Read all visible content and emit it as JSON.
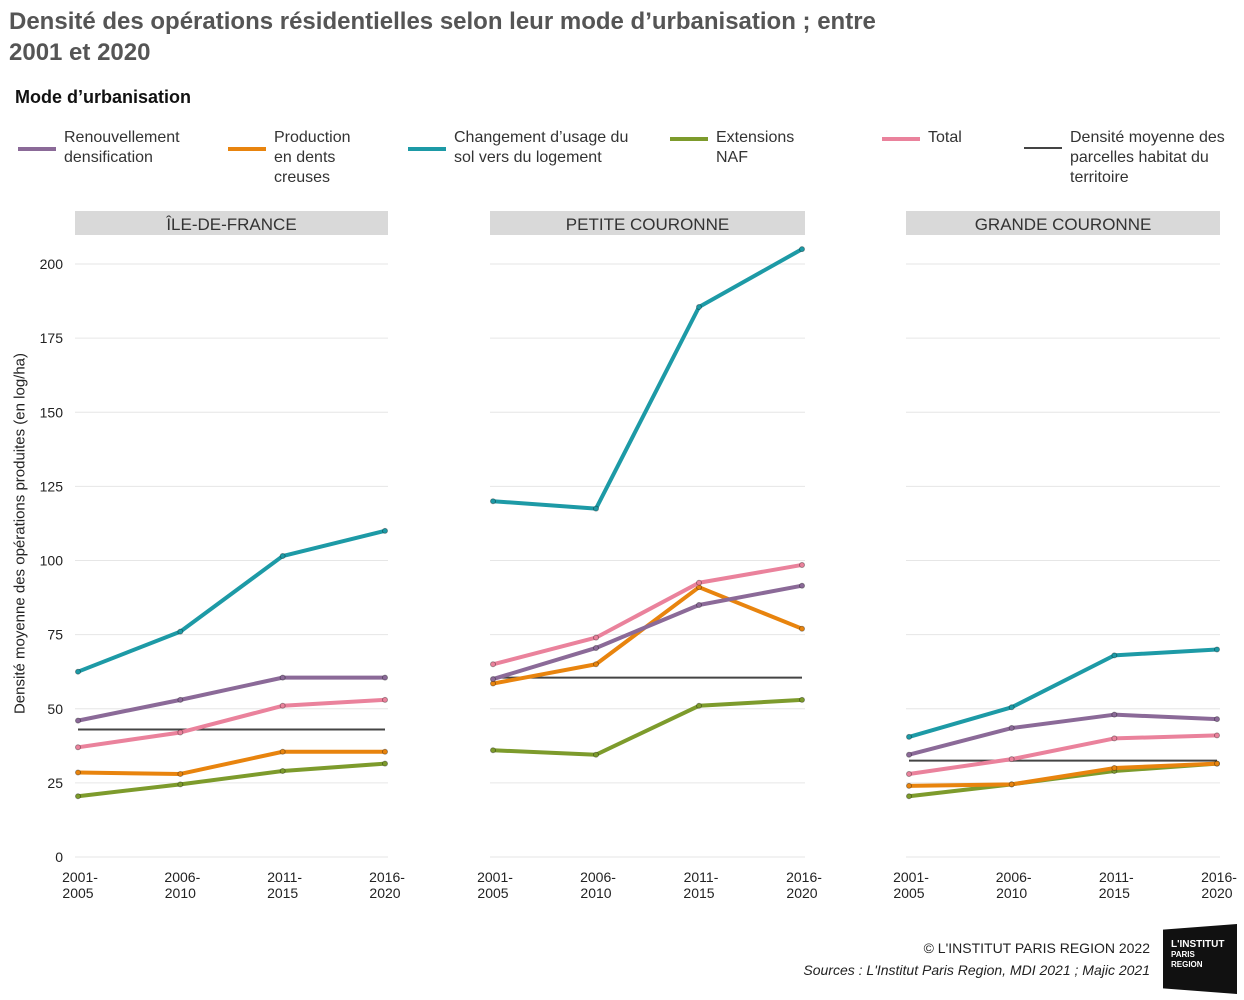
{
  "title": "Densité des opérations résidentielles selon leur mode d’urbanisation ; entre 2001 et 2020",
  "credit": "© L'INSTITUT PARIS REGION 2022",
  "sources": "Sources : L'Institut Paris Region, MDI 2021 ; Majic 2021",
  "logo_text": "L'INSTITUT PARIS REGION",
  "chart_data": {
    "type": "line",
    "legend_title": "Mode d’urbanisation",
    "ylabel": "Densité moyenne des opérations produites (en log/ha)",
    "ylim": [
      0,
      210
    ],
    "yticks": [
      0,
      25,
      50,
      75,
      100,
      125,
      150,
      175,
      200
    ],
    "categories": [
      "2001-\n2005",
      "2006-\n2010",
      "2011-\n2015",
      "2016-\n2020"
    ],
    "series_meta": [
      {
        "key": "renouvellement",
        "name": "Renouvellement densification",
        "color": "#8b6a98"
      },
      {
        "key": "production",
        "name": "Production en dents creuses",
        "color": "#e8840e"
      },
      {
        "key": "changement",
        "name": "Changement d’usage du sol vers du logement",
        "color": "#1d9aa6"
      },
      {
        "key": "extensions",
        "name": "Extensions NAF",
        "color": "#7d9b2c"
      },
      {
        "key": "total",
        "name": "Total",
        "color": "#ea829c"
      },
      {
        "key": "moyenne",
        "name": "Densité moyenne des parcelles habitat du territoire",
        "color": "#444444"
      }
    ],
    "panels": [
      {
        "name": "ÎLE-DE-FRANCE",
        "series": {
          "renouvellement": [
            46,
            53,
            60.5,
            60.5
          ],
          "production": [
            28.5,
            28,
            35.5,
            35.5
          ],
          "changement": [
            62.5,
            76,
            101.5,
            110
          ],
          "extensions": [
            20.5,
            24.5,
            29,
            31.5
          ],
          "total": [
            37,
            42,
            51,
            53
          ],
          "moyenne": 43
        }
      },
      {
        "name": "PETITE COURONNE",
        "series": {
          "renouvellement": [
            60,
            70.5,
            85,
            91.5
          ],
          "production": [
            58.5,
            65,
            91,
            77
          ],
          "changement": [
            120,
            117.5,
            185.5,
            205
          ],
          "extensions": [
            36,
            34.5,
            51,
            53
          ],
          "total": [
            65,
            74,
            92.5,
            98.5
          ],
          "moyenne": 60.5
        }
      },
      {
        "name": "GRANDE COURONNE",
        "series": {
          "renouvellement": [
            34.5,
            43.5,
            48,
            46.5
          ],
          "production": [
            24,
            24.5,
            30,
            31.5
          ],
          "changement": [
            40.5,
            50.5,
            68,
            70
          ],
          "extensions": [
            20.5,
            24.5,
            29,
            31.5
          ],
          "total": [
            28,
            33,
            40,
            41
          ],
          "moyenne": 32.5
        }
      }
    ]
  }
}
